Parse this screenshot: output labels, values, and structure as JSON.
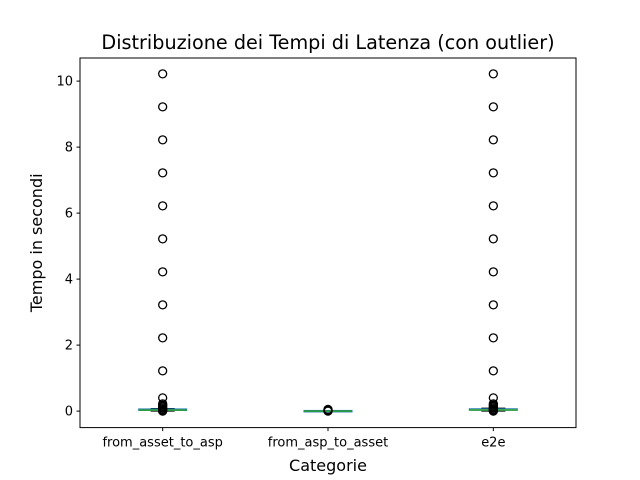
{
  "chart_data": {
    "type": "box",
    "title": "Distribuzione dei Tempi di Latenza (con outlier)",
    "xlabel": "Categorie",
    "ylabel": "Tempo in secondi",
    "ylim": [
      -0.5,
      10.7
    ],
    "yticks": [
      0,
      2,
      4,
      6,
      8,
      10
    ],
    "grid": false,
    "categories": [
      "from_asset_to_asp",
      "from_asp_to_asset",
      "e2e"
    ],
    "boxes": [
      {
        "category": "from_asset_to_asp",
        "whisker_low": 0.0,
        "q1": 0.02,
        "median": 0.03,
        "q3": 0.05,
        "whisker_high": 0.08,
        "outliers": [
          0.0,
          0.02,
          0.04,
          0.06,
          0.1,
          0.14,
          0.18,
          0.22,
          0.4,
          1.22,
          2.22,
          3.22,
          4.22,
          5.22,
          6.22,
          7.22,
          8.22,
          9.22,
          10.22
        ]
      },
      {
        "category": "from_asp_to_asset",
        "whisker_low": 0.0,
        "q1": 0.0,
        "median": 0.0,
        "q3": 0.005,
        "whisker_high": 0.01,
        "outliers": [
          0.0,
          0.01,
          0.02,
          0.03,
          0.04,
          0.05
        ]
      },
      {
        "category": "e2e",
        "whisker_low": 0.0,
        "q1": 0.02,
        "median": 0.035,
        "q3": 0.055,
        "whisker_high": 0.09,
        "outliers": [
          0.0,
          0.02,
          0.04,
          0.06,
          0.1,
          0.14,
          0.18,
          0.22,
          0.4,
          1.22,
          2.22,
          3.22,
          4.22,
          5.22,
          6.22,
          7.22,
          8.22,
          9.22,
          10.22
        ]
      }
    ],
    "colors": {
      "box": "#1f77b4",
      "median": "#2ca02c",
      "whisker": "#000000",
      "outlier_edge": "#000000"
    }
  }
}
